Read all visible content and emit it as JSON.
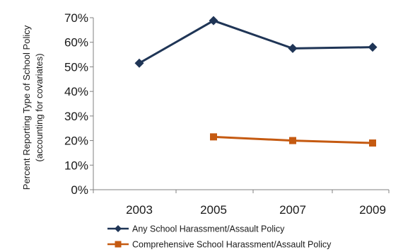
{
  "chart_data": {
    "type": "line",
    "ylabel_line1": "Percent Reporting Type of School Policy",
    "ylabel_line2": "(accounting for covariates)",
    "x": [
      "2003",
      "2005",
      "2007",
      "2009"
    ],
    "ylim": [
      0,
      70
    ],
    "yticks": [
      0,
      10,
      20,
      30,
      40,
      50,
      60,
      70
    ],
    "ytick_labels": [
      "0%",
      "10%",
      "20%",
      "30%",
      "40%",
      "50%",
      "60%",
      "70%"
    ],
    "legend_position": "bottom",
    "series": [
      {
        "name": "Any School Harassment/Assault Policy",
        "values": [
          51.5,
          68.8,
          57.5,
          58.0
        ],
        "color": "#1f3556",
        "marker": "diamond"
      },
      {
        "name": "Comprehensive School Harassment/Assault Policy",
        "values": [
          null,
          21.5,
          20.0,
          19.0
        ],
        "color": "#c55a11",
        "marker": "square"
      }
    ]
  }
}
